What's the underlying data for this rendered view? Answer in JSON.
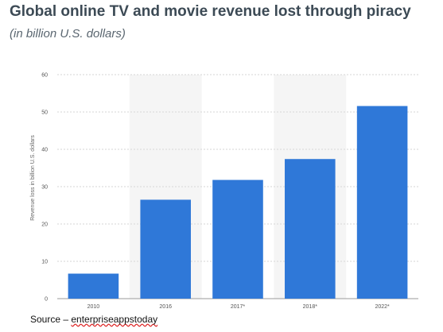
{
  "header": {
    "title": "Global online TV and movie revenue lost through piracy",
    "subtitle": "(in billion U.S. dollars)"
  },
  "footer": {
    "source_prefix": "Source – ",
    "source_name": "enterpriseappstoday"
  },
  "chart_data": {
    "type": "bar",
    "categories": [
      "2010",
      "2016",
      "2017*",
      "2018*",
      "2022*"
    ],
    "values": [
      6.7,
      26.5,
      31.8,
      37.4,
      51.6
    ],
    "title": "",
    "xlabel": "",
    "ylabel": "Revenue loss in billion U.S. dollars",
    "ylim": [
      0,
      60
    ],
    "yticks": [
      0,
      10,
      20,
      30,
      40,
      50,
      60
    ],
    "grid": true,
    "legend": "none",
    "bar_color": "#2f78d8",
    "band_color": "#f5f5f5"
  }
}
